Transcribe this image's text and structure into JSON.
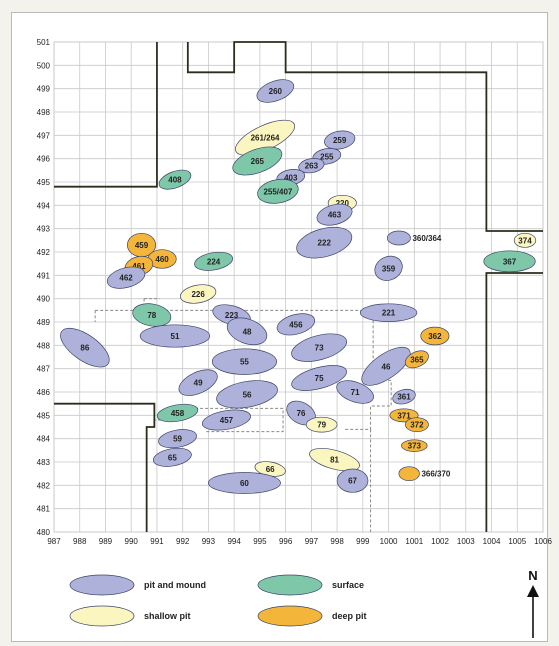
{
  "map": {
    "y_ticks": [
      "501",
      "500",
      "499",
      "498",
      "497",
      "496",
      "495",
      "494",
      "493",
      "492",
      "491",
      "490",
      "489",
      "488",
      "487",
      "486",
      "485",
      "484",
      "483",
      "482",
      "481",
      "480"
    ],
    "x_ticks": [
      "987",
      "988",
      "989",
      "990",
      "991",
      "992",
      "993",
      "994",
      "995",
      "996",
      "997",
      "998",
      "999",
      "1000",
      "1001",
      "1002",
      "1003",
      "1004",
      "1005",
      "1006"
    ],
    "features": [
      {
        "label": "260",
        "type": "pit_and_mound",
        "cx": 995.6,
        "cy": 498.9,
        "rx": 0.75,
        "ry": 0.42,
        "rot": 20
      },
      {
        "label": "261/264",
        "type": "shallow_pit",
        "cx": 995.2,
        "cy": 496.9,
        "rx": 1.25,
        "ry": 0.52,
        "rot": 25
      },
      {
        "label": "259",
        "type": "pit_and_mound",
        "cx": 998.1,
        "cy": 496.8,
        "rx": 0.6,
        "ry": 0.38,
        "rot": 10
      },
      {
        "label": "255",
        "type": "pit_and_mound",
        "cx": 997.6,
        "cy": 496.1,
        "rx": 0.55,
        "ry": 0.33,
        "rot": 10
      },
      {
        "label": "265",
        "type": "surface",
        "cx": 994.9,
        "cy": 495.9,
        "rx": 1.0,
        "ry": 0.5,
        "rot": 20
      },
      {
        "label": "263",
        "type": "pit_and_mound",
        "cx": 997.0,
        "cy": 495.7,
        "rx": 0.5,
        "ry": 0.3,
        "rot": 10
      },
      {
        "label": "403",
        "type": "pit_and_mound",
        "cx": 996.2,
        "cy": 495.2,
        "rx": 0.55,
        "ry": 0.33,
        "rot": 10
      },
      {
        "label": "408",
        "type": "surface",
        "cx": 991.7,
        "cy": 495.1,
        "rx": 0.65,
        "ry": 0.35,
        "rot": 20
      },
      {
        "label": "255/407",
        "type": "surface",
        "cx": 995.7,
        "cy": 494.6,
        "rx": 0.8,
        "ry": 0.5,
        "rot": 10
      },
      {
        "label": "220",
        "type": "shallow_pit",
        "cx": 998.2,
        "cy": 494.1,
        "rx": 0.55,
        "ry": 0.33,
        "rot": 0
      },
      {
        "label": "463",
        "type": "pit_and_mound",
        "cx": 997.9,
        "cy": 493.6,
        "rx": 0.7,
        "ry": 0.42,
        "rot": 15
      },
      {
        "label": "222",
        "type": "pit_and_mound",
        "cx": 997.5,
        "cy": 492.4,
        "rx": 1.1,
        "ry": 0.6,
        "rot": 15
      },
      {
        "label": "360/364",
        "type": "pit_and_mound",
        "cx": 1000.4,
        "cy": 492.6,
        "rx": 0.45,
        "ry": 0.3,
        "rot": 0
      },
      {
        "label": "374",
        "type": "shallow_pit",
        "cx": 1005.3,
        "cy": 492.5,
        "rx": 0.42,
        "ry": 0.3,
        "rot": 0
      },
      {
        "label": "459",
        "type": "deep_pit",
        "cx": 990.4,
        "cy": 492.3,
        "rx": 0.55,
        "ry": 0.5,
        "rot": 0
      },
      {
        "label": "460",
        "type": "deep_pit",
        "cx": 991.2,
        "cy": 491.7,
        "rx": 0.55,
        "ry": 0.4,
        "rot": 0
      },
      {
        "label": "461",
        "type": "deep_pit",
        "cx": 990.3,
        "cy": 491.4,
        "rx": 0.55,
        "ry": 0.4,
        "rot": 15
      },
      {
        "label": "224",
        "type": "surface",
        "cx": 993.2,
        "cy": 491.6,
        "rx": 0.75,
        "ry": 0.37,
        "rot": 10
      },
      {
        "label": "367",
        "type": "surface",
        "cx": 1004.7,
        "cy": 491.6,
        "rx": 1.0,
        "ry": 0.45,
        "rot": 0
      },
      {
        "label": "359",
        "type": "pit_and_mound",
        "cx": 1000.0,
        "cy": 491.3,
        "rx": 0.55,
        "ry": 0.5,
        "rot": 25
      },
      {
        "label": "462",
        "type": "pit_and_mound",
        "cx": 989.8,
        "cy": 490.9,
        "rx": 0.75,
        "ry": 0.42,
        "rot": 15
      },
      {
        "label": "226",
        "type": "shallow_pit",
        "cx": 992.6,
        "cy": 490.2,
        "rx": 0.7,
        "ry": 0.38,
        "rot": 10
      },
      {
        "label": "78",
        "type": "surface",
        "cx": 990.8,
        "cy": 489.3,
        "rx": 0.75,
        "ry": 0.47,
        "rot": -10
      },
      {
        "label": "223",
        "type": "pit_and_mound",
        "cx": 993.9,
        "cy": 489.3,
        "rx": 0.75,
        "ry": 0.4,
        "rot": -15
      },
      {
        "label": "221",
        "type": "pit_and_mound",
        "cx": 1000.0,
        "cy": 489.4,
        "rx": 1.1,
        "ry": 0.38,
        "rot": 0
      },
      {
        "label": "456",
        "type": "pit_and_mound",
        "cx": 996.4,
        "cy": 488.9,
        "rx": 0.75,
        "ry": 0.42,
        "rot": 15
      },
      {
        "label": "48",
        "type": "pit_and_mound",
        "cx": 994.5,
        "cy": 488.6,
        "rx": 0.8,
        "ry": 0.52,
        "rot": -20
      },
      {
        "label": "51",
        "type": "pit_and_mound",
        "cx": 991.7,
        "cy": 488.4,
        "rx": 1.35,
        "ry": 0.48,
        "rot": 0
      },
      {
        "label": "362",
        "type": "deep_pit",
        "cx": 1001.8,
        "cy": 488.4,
        "rx": 0.55,
        "ry": 0.38,
        "rot": 0
      },
      {
        "label": "86",
        "type": "pit_and_mound",
        "cx": 988.2,
        "cy": 487.9,
        "rx": 1.1,
        "ry": 0.55,
        "rot": -35
      },
      {
        "label": "73",
        "type": "pit_and_mound",
        "cx": 997.3,
        "cy": 487.9,
        "rx": 1.1,
        "ry": 0.52,
        "rot": 15
      },
      {
        "label": "55",
        "type": "pit_and_mound",
        "cx": 994.4,
        "cy": 487.3,
        "rx": 1.25,
        "ry": 0.55,
        "rot": 0
      },
      {
        "label": "46",
        "type": "pit_and_mound",
        "cx": 999.9,
        "cy": 487.1,
        "rx": 1.1,
        "ry": 0.52,
        "rot": 35
      },
      {
        "label": "365",
        "type": "deep_pit",
        "cx": 1001.1,
        "cy": 487.4,
        "rx": 0.48,
        "ry": 0.32,
        "rot": 25
      },
      {
        "label": "75",
        "type": "pit_and_mound",
        "cx": 997.3,
        "cy": 486.6,
        "rx": 1.1,
        "ry": 0.45,
        "rot": 15
      },
      {
        "label": "49",
        "type": "pit_and_mound",
        "cx": 992.6,
        "cy": 486.4,
        "rx": 0.8,
        "ry": 0.45,
        "rot": 25
      },
      {
        "label": "56",
        "type": "pit_and_mound",
        "cx": 994.5,
        "cy": 485.9,
        "rx": 1.2,
        "ry": 0.55,
        "rot": 10
      },
      {
        "label": "71",
        "type": "pit_and_mound",
        "cx": 998.7,
        "cy": 486.0,
        "rx": 0.75,
        "ry": 0.42,
        "rot": -20
      },
      {
        "label": "361",
        "type": "pit_and_mound",
        "cx": 1000.6,
        "cy": 485.8,
        "rx": 0.45,
        "ry": 0.3,
        "rot": 15
      },
      {
        "label": "458",
        "type": "surface",
        "cx": 991.8,
        "cy": 485.1,
        "rx": 0.8,
        "ry": 0.35,
        "rot": 10
      },
      {
        "label": "457",
        "type": "pit_and_mound",
        "cx": 993.7,
        "cy": 484.8,
        "rx": 0.95,
        "ry": 0.4,
        "rot": 10
      },
      {
        "label": "76",
        "type": "pit_and_mound",
        "cx": 996.6,
        "cy": 485.1,
        "rx": 0.6,
        "ry": 0.45,
        "rot": -30
      },
      {
        "label": "371",
        "type": "deep_pit",
        "cx": 1000.6,
        "cy": 485.0,
        "rx": 0.55,
        "ry": 0.28,
        "rot": 0
      },
      {
        "label": "372",
        "type": "deep_pit",
        "cx": 1001.1,
        "cy": 484.6,
        "rx": 0.45,
        "ry": 0.3,
        "rot": 0
      },
      {
        "label": "79",
        "type": "shallow_pit",
        "cx": 997.4,
        "cy": 484.6,
        "rx": 0.6,
        "ry": 0.32,
        "rot": 0
      },
      {
        "label": "59",
        "type": "pit_and_mound",
        "cx": 991.8,
        "cy": 484.0,
        "rx": 0.75,
        "ry": 0.37,
        "rot": 10
      },
      {
        "label": "373",
        "type": "deep_pit",
        "cx": 1001.0,
        "cy": 483.7,
        "rx": 0.5,
        "ry": 0.25,
        "rot": 0
      },
      {
        "label": "81",
        "type": "shallow_pit",
        "cx": 997.9,
        "cy": 483.1,
        "rx": 1.0,
        "ry": 0.4,
        "rot": -15
      },
      {
        "label": "65",
        "type": "pit_and_mound",
        "cx": 991.6,
        "cy": 483.2,
        "rx": 0.75,
        "ry": 0.37,
        "rot": 10
      },
      {
        "label": "66",
        "type": "shallow_pit",
        "cx": 995.4,
        "cy": 482.7,
        "rx": 0.6,
        "ry": 0.3,
        "rot": -10
      },
      {
        "label": "366/370",
        "type": "deep_pit",
        "cx": 1000.8,
        "cy": 482.5,
        "rx": 0.4,
        "ry": 0.3,
        "rot": 0
      },
      {
        "label": "60",
        "type": "pit_and_mound",
        "cx": 994.4,
        "cy": 482.1,
        "rx": 1.4,
        "ry": 0.45,
        "rot": 0
      },
      {
        "label": "67",
        "type": "pit_and_mound",
        "cx": 998.6,
        "cy": 482.2,
        "rx": 0.6,
        "ry": 0.5,
        "rot": 0
      }
    ]
  },
  "legend": [
    {
      "type": "pit_and_mound",
      "label": "pit and mound"
    },
    {
      "type": "surface",
      "label": "surface"
    },
    {
      "type": "shallow_pit",
      "label": "shallow pit"
    },
    {
      "type": "deep_pit",
      "label": "deep pit"
    }
  ],
  "colors": {
    "pit_and_mound": "#aeb2da",
    "surface": "#7ec7a9",
    "shallow_pit": "#fbf6c0",
    "deep_pit": "#f3b63a",
    "outline": "#3c4468",
    "grid": "#c9c9c9",
    "boundary": "#2a2f1c"
  },
  "north": "N"
}
